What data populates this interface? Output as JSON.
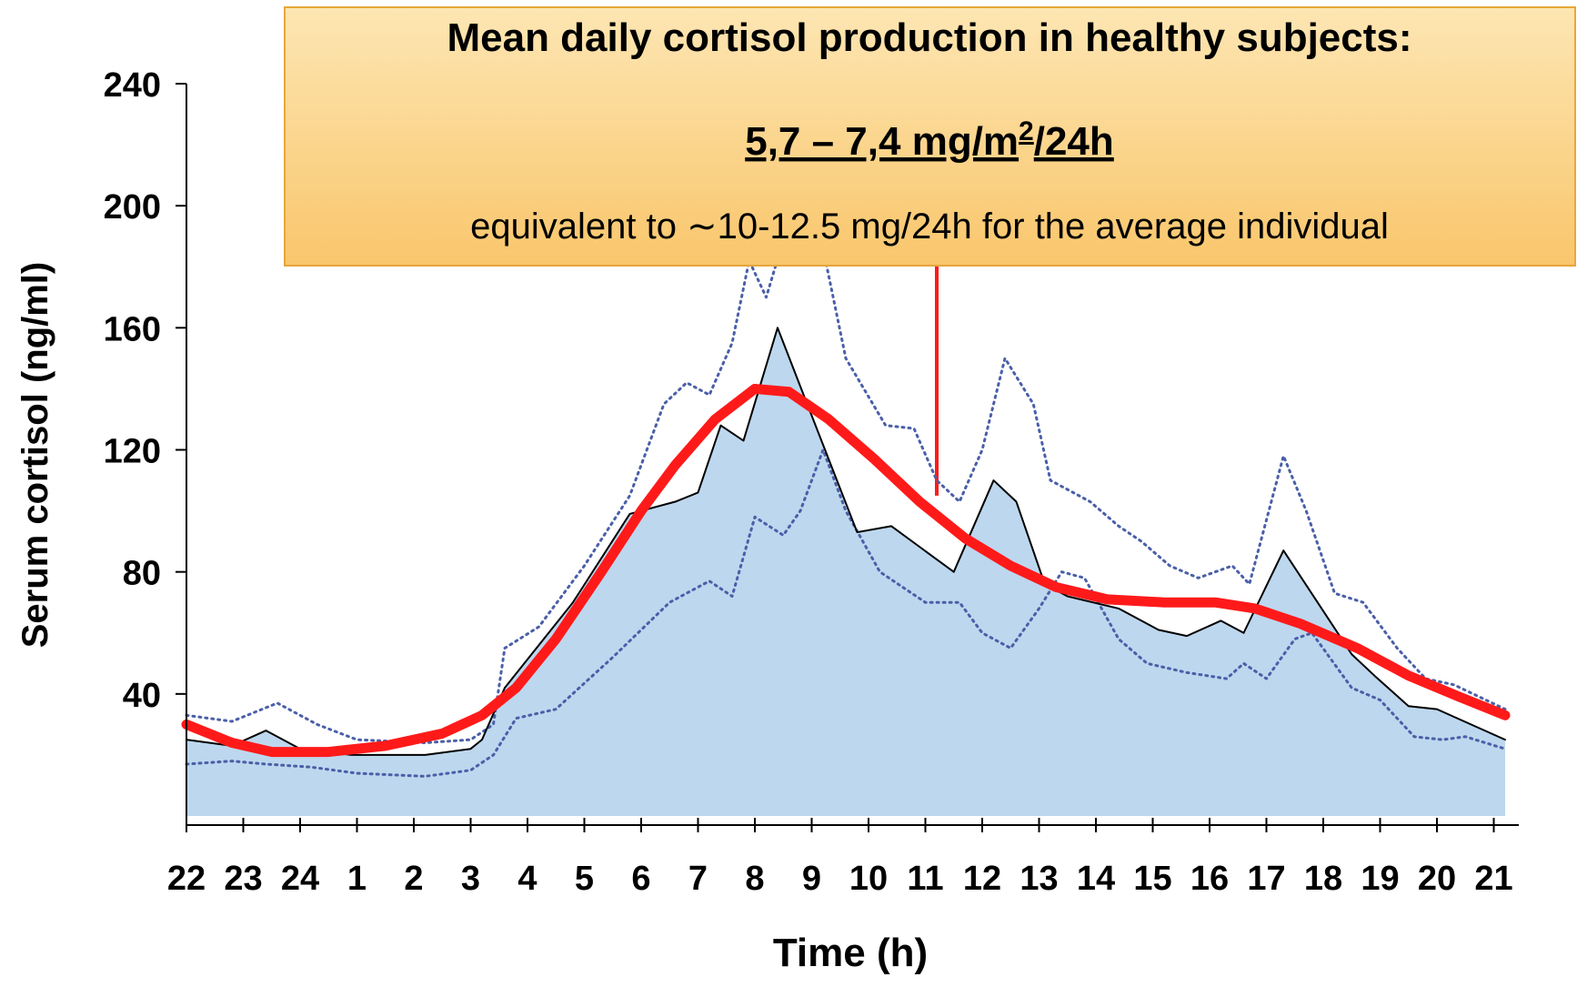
{
  "chart_data": {
    "type": "line",
    "x_label": "Time (h)",
    "y_label": "Serum cortisol (ng/ml)",
    "xlim": [
      0,
      23.2
    ],
    "ylim": [
      0,
      240
    ],
    "yticks": [
      40,
      80,
      120,
      160,
      200,
      240
    ],
    "xticks": [
      {
        "value": 0,
        "label": "22"
      },
      {
        "value": 1,
        "label": "23"
      },
      {
        "value": 2,
        "label": "24"
      },
      {
        "value": 3,
        "label": "1"
      },
      {
        "value": 4,
        "label": "2"
      },
      {
        "value": 5,
        "label": "3"
      },
      {
        "value": 6,
        "label": "4"
      },
      {
        "value": 7,
        "label": "5"
      },
      {
        "value": 8,
        "label": "6"
      },
      {
        "value": 9,
        "label": "7"
      },
      {
        "value": 10,
        "label": "8"
      },
      {
        "value": 11,
        "label": "9"
      },
      {
        "value": 12,
        "label": "10"
      },
      {
        "value": 13,
        "label": "11"
      },
      {
        "value": 14,
        "label": "12"
      },
      {
        "value": 15,
        "label": "13"
      },
      {
        "value": 16,
        "label": "14"
      },
      {
        "value": 17,
        "label": "15"
      },
      {
        "value": 18,
        "label": "16"
      },
      {
        "value": 19,
        "label": "17"
      },
      {
        "value": 20,
        "label": "18"
      },
      {
        "value": 21,
        "label": "19"
      },
      {
        "value": 22,
        "label": "20"
      },
      {
        "value": 23,
        "label": "21"
      }
    ],
    "area_color": "#bdd7ee",
    "series": [
      {
        "color": "#4a5fa8",
        "line_style": "dotted",
        "width": 3,
        "x": [
          0,
          0.8,
          1.6,
          2.3,
          3.0,
          4.2,
          5.0,
          5.4,
          5.6,
          6.2,
          7.0,
          7.8,
          8.4,
          8.8,
          9.2,
          9.6,
          9.9,
          10.2,
          10.6,
          11.1,
          11.6,
          12.3,
          12.8,
          13.2,
          13.6,
          14.0,
          14.4,
          14.9,
          15.2,
          15.9,
          16.4,
          16.8,
          17.3,
          17.8,
          18.4,
          18.7,
          19.3,
          19.7,
          20.2,
          20.7,
          21.3,
          21.8,
          22.3,
          23.2
        ],
        "values": [
          33,
          31,
          37,
          30,
          25,
          24,
          25,
          30,
          55,
          62,
          82,
          105,
          135,
          142,
          138,
          155,
          182,
          170,
          195,
          195,
          150,
          128,
          127,
          110,
          103,
          120,
          150,
          135,
          110,
          103,
          95,
          90,
          82,
          78,
          82,
          76,
          118,
          100,
          73,
          70,
          55,
          45,
          43,
          35
        ]
      },
      {
        "color": "#4a5fa8",
        "line_style": "dotted",
        "width": 3,
        "x": [
          0,
          0.8,
          1.4,
          2.2,
          3.0,
          4.2,
          5.0,
          5.4,
          5.8,
          6.5,
          7.5,
          8.5,
          9.2,
          9.6,
          10.0,
          10.5,
          10.8,
          11.2,
          11.6,
          12.2,
          13.0,
          13.6,
          14.0,
          14.5,
          15.0,
          15.4,
          15.8,
          16.4,
          16.9,
          17.6,
          18.3,
          18.6,
          19.0,
          19.5,
          19.8,
          20.5,
          21.0,
          21.6,
          22.1,
          22.5,
          23.2
        ],
        "values": [
          17,
          18,
          17,
          16,
          14,
          13,
          15,
          20,
          32,
          35,
          52,
          70,
          77,
          72,
          98,
          92,
          100,
          120,
          100,
          80,
          70,
          70,
          60,
          55,
          68,
          80,
          78,
          58,
          50,
          47,
          45,
          50,
          45,
          58,
          60,
          42,
          38,
          26,
          25,
          26,
          22
        ]
      },
      {
        "color": "#000000",
        "line_style": "solid",
        "width": 2,
        "area": true,
        "x": [
          0,
          0.8,
          1.4,
          2.0,
          2.9,
          4.2,
          5.0,
          5.2,
          5.6,
          6.8,
          7.8,
          8.6,
          9.0,
          9.4,
          9.8,
          10.4,
          10.9,
          11.8,
          12.4,
          13.5,
          14.2,
          14.6,
          15.1,
          15.5,
          16.4,
          17.1,
          17.6,
          18.2,
          18.6,
          19.3,
          19.9,
          20.5,
          20.9,
          21.5,
          22.0,
          23.2
        ],
        "values": [
          25,
          23,
          28,
          22,
          20,
          20,
          22,
          25,
          42,
          70,
          99,
          103,
          106,
          128,
          123,
          160,
          136,
          93,
          95,
          80,
          110,
          103,
          76,
          72,
          68,
          61,
          59,
          64,
          60,
          87,
          70,
          53,
          46,
          36,
          35,
          25
        ]
      },
      {
        "color": "#ff1a1a",
        "line_style": "solid",
        "width": 11,
        "x": [
          0,
          0.8,
          1.5,
          2.5,
          3.5,
          4.5,
          5.2,
          5.8,
          6.5,
          7.3,
          8.0,
          8.6,
          9.3,
          10.0,
          10.6,
          11.3,
          12.1,
          12.9,
          13.7,
          14.5,
          15.3,
          16.2,
          17.2,
          18.1,
          18.8,
          19.6,
          20.6,
          21.5,
          22.4,
          23.2
        ],
        "values": [
          30,
          24,
          21,
          21,
          23,
          27,
          33,
          42,
          58,
          80,
          100,
          115,
          130,
          140,
          139,
          130,
          117,
          103,
          91,
          82,
          75,
          71,
          70,
          70,
          68,
          63,
          55,
          46,
          39,
          33
        ]
      }
    ],
    "vline": {
      "x": 13.2,
      "y": 105,
      "color": "#ff1a1a"
    },
    "annotation": {
      "title": "Mean daily cortisol production in healthy subjects:",
      "value_parts": [
        "5,7 – 7,4 mg/m",
        "2",
        "/24h"
      ],
      "note": "equivalent to ∼10-12.5 mg/24h for the average individual"
    }
  }
}
